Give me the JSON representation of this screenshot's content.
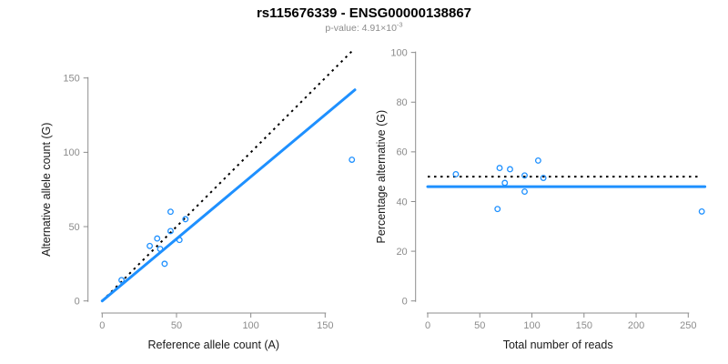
{
  "figure": {
    "title": "rs115676339 - ENSG00000138867",
    "subtitle": {
      "text": "p-value: 4.91×10",
      "exponent": "-3"
    }
  },
  "colors": {
    "accent_blue": "#1E90FF",
    "line_black": "#000000",
    "axis_gray": "#8C8C8C",
    "label_dark": "#1A1A1A",
    "background": "#FFFFFF"
  },
  "chart_data": [
    {
      "id": "allele-counts",
      "type": "scatter",
      "title": "",
      "xlabel": "Reference allele count (A)",
      "ylabel": "Alternative allele count (G)",
      "xlim": [
        0,
        170
      ],
      "ylim": [
        0,
        170
      ],
      "xticks": [
        0,
        50,
        100,
        150
      ],
      "yticks": [
        0,
        50,
        100,
        150
      ],
      "grid": false,
      "marker": "open-circle",
      "points": [
        [
          13,
          14
        ],
        [
          32,
          37
        ],
        [
          37,
          42
        ],
        [
          39,
          35
        ],
        [
          42,
          25
        ],
        [
          46,
          47
        ],
        [
          46,
          60
        ],
        [
          52,
          41
        ],
        [
          56,
          55
        ],
        [
          168,
          95
        ]
      ],
      "lines": [
        {
          "name": "identity-line",
          "style": "dotted",
          "color": "#000000",
          "x": [
            0,
            168
          ],
          "y": [
            0,
            168
          ]
        },
        {
          "name": "regression-line",
          "style": "solid",
          "color": "#1E90FF",
          "x": [
            0,
            170
          ],
          "y": [
            0,
            142
          ]
        }
      ]
    },
    {
      "id": "percentage-alternative",
      "type": "scatter",
      "title": "",
      "xlabel": "Total number of reads",
      "ylabel": "Percentage alternative (G)",
      "xlim": [
        0,
        266
      ],
      "ylim": [
        0,
        100
      ],
      "xticks": [
        0,
        50,
        100,
        150,
        200,
        250
      ],
      "yticks": [
        0,
        20,
        40,
        60,
        80,
        100
      ],
      "grid": false,
      "marker": "open-circle",
      "points": [
        [
          27,
          51
        ],
        [
          67,
          37
        ],
        [
          69,
          53.5
        ],
        [
          74,
          47.5
        ],
        [
          79,
          53
        ],
        [
          93,
          44
        ],
        [
          93,
          50.5
        ],
        [
          106,
          56.5
        ],
        [
          111,
          49.5
        ],
        [
          263,
          36
        ]
      ],
      "lines": [
        {
          "name": "expected-50pct-line",
          "style": "dotted",
          "color": "#000000",
          "x": [
            0,
            259
          ],
          "y": [
            50,
            50
          ]
        },
        {
          "name": "mean-percentage-line",
          "style": "solid",
          "color": "#1E90FF",
          "x": [
            0,
            266
          ],
          "y": [
            46,
            46
          ]
        }
      ]
    }
  ]
}
